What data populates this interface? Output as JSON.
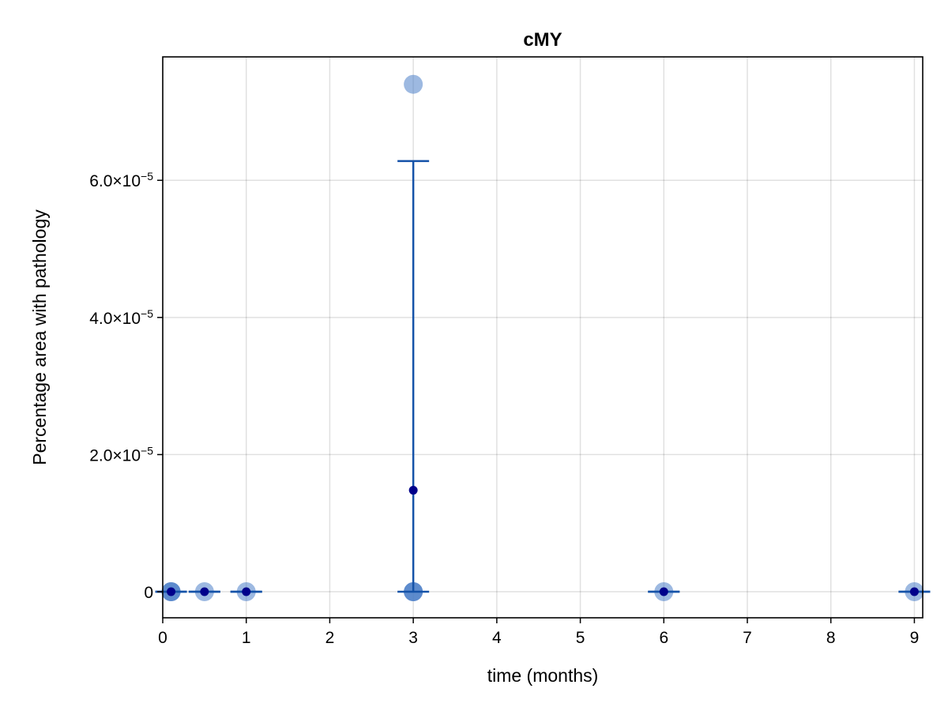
{
  "chart_data": {
    "type": "scatter",
    "title": "cMY",
    "xlabel": "time (months)",
    "ylabel": "Percentage area with pathology",
    "xlim": [
      0,
      9.1
    ],
    "ylim": [
      -3.8e-06,
      7.8e-05
    ],
    "grid": true,
    "legend": "none",
    "x_ticks": [
      0,
      1,
      2,
      3,
      4,
      5,
      6,
      7,
      8,
      9
    ],
    "x_tick_labels": [
      "0",
      "1",
      "2",
      "3",
      "4",
      "5",
      "6",
      "7",
      "8",
      "9"
    ],
    "y_ticks": [
      0,
      2e-05,
      4e-05,
      6e-05
    ],
    "y_tick_labels": [
      {
        "base": "0",
        "exp": ""
      },
      {
        "base": "2.0×10",
        "exp": "−5"
      },
      {
        "base": "4.0×10",
        "exp": "−5"
      },
      {
        "base": "6.0×10",
        "exp": "−5"
      }
    ],
    "colors": {
      "individual": "#4d7fc8",
      "mean": "#00008b",
      "errorbar": "#1452a8",
      "axes": "#000000"
    },
    "individual_points": [
      {
        "x": 0.1,
        "y": 0,
        "count": 3
      },
      {
        "x": 0.5,
        "y": 0,
        "count": 1
      },
      {
        "x": 1,
        "y": 0,
        "count": 1
      },
      {
        "x": 3,
        "y": 7.4e-05,
        "count": 1
      },
      {
        "x": 3,
        "y": 0,
        "count": 3
      },
      {
        "x": 6,
        "y": 0,
        "count": 1
      },
      {
        "x": 9,
        "y": 0,
        "count": 1
      }
    ],
    "mean_points": [
      {
        "x": 0.1,
        "y": 0,
        "err_low": 0,
        "err_high": 0
      },
      {
        "x": 0.5,
        "y": 0,
        "err_low": 0,
        "err_high": 0
      },
      {
        "x": 1,
        "y": 0,
        "err_low": 0,
        "err_high": 0
      },
      {
        "x": 3,
        "y": 1.48e-05,
        "err_low": 1.48e-05,
        "err_high": 4.8e-05
      },
      {
        "x": 6,
        "y": 0,
        "err_low": 0,
        "err_high": 0
      },
      {
        "x": 9,
        "y": 0,
        "err_low": 0,
        "err_high": 0
      }
    ]
  }
}
